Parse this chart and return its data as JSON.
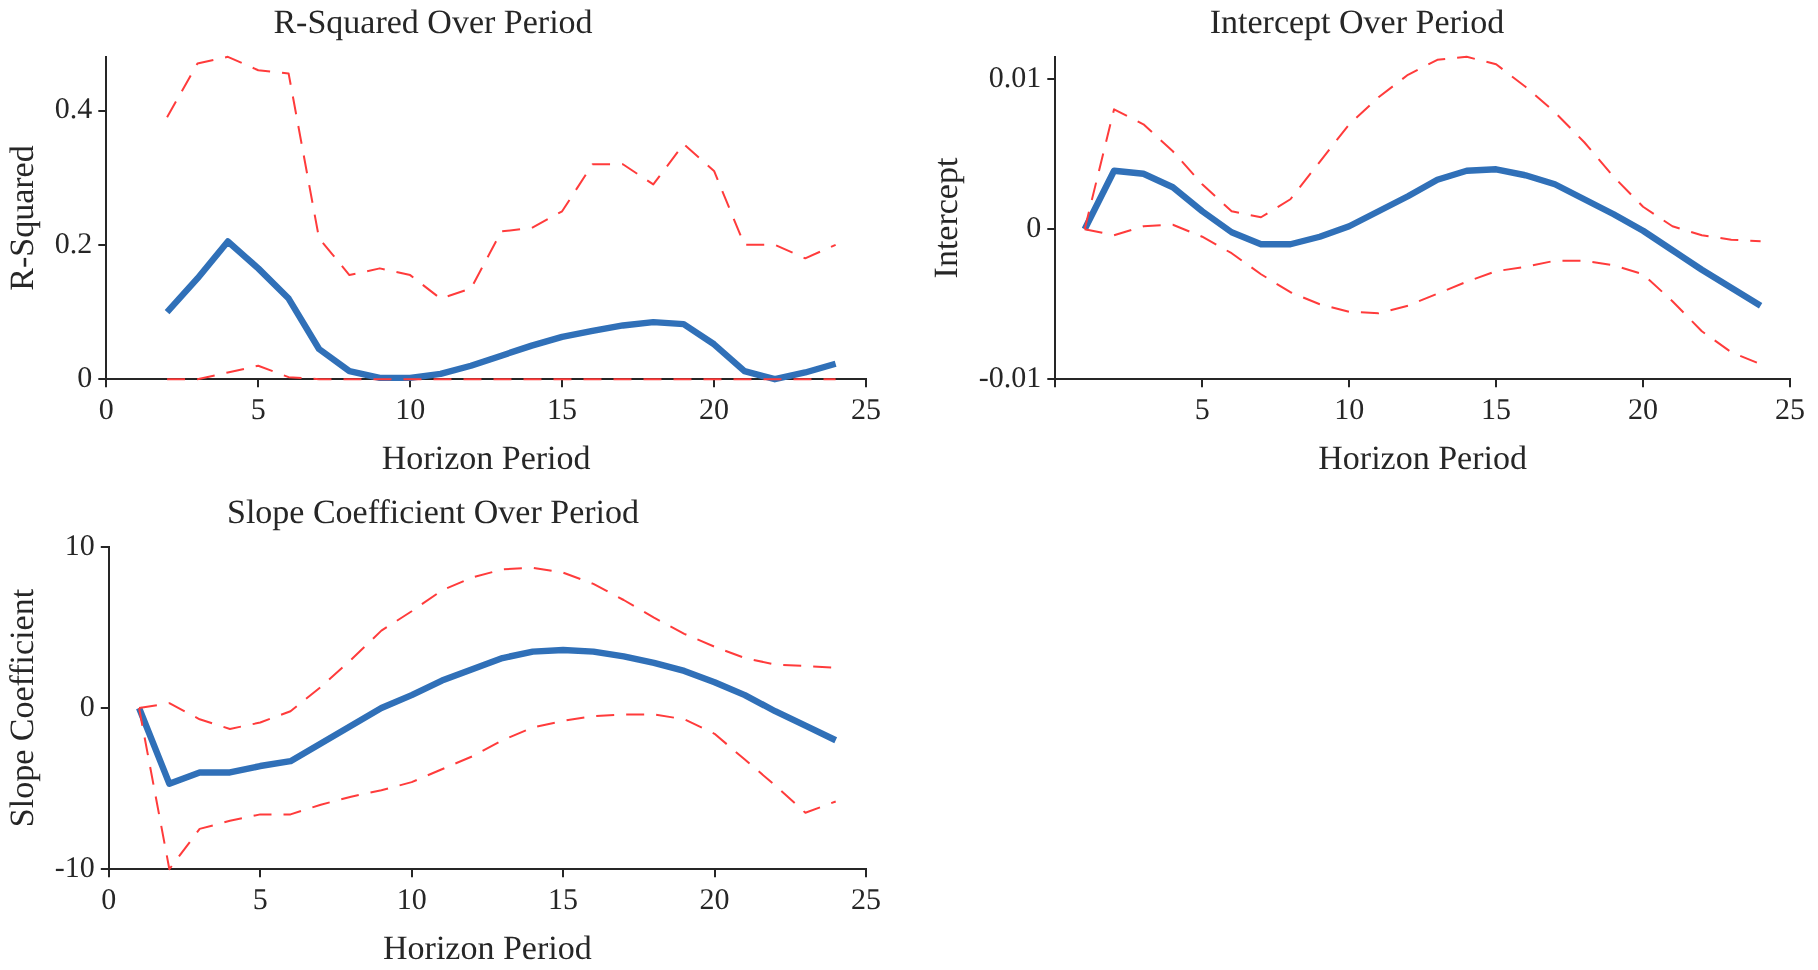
{
  "chart_data": [
    {
      "type": "line",
      "title": "R-Squared Over Period",
      "xlabel": "Horizon Period",
      "ylabel": "R-Squared",
      "x": [
        2,
        3,
        4,
        5,
        6,
        7,
        8,
        9,
        10,
        11,
        12,
        13,
        14,
        15,
        16,
        17,
        18,
        19,
        20,
        21,
        22,
        23,
        24
      ],
      "xlim": [
        0,
        25
      ],
      "xticks": [
        0,
        5,
        10,
        15,
        20,
        25
      ],
      "ylim": [
        0,
        0.48
      ],
      "yticks": [
        0,
        0.2,
        0.4
      ],
      "grid": false,
      "legend": false,
      "marker": "none",
      "series": [
        {
          "color": "#ff3b3b",
          "line_style": "dashed",
          "values": [
            0.39,
            0.47,
            0.48,
            0.46,
            0.455,
            0.21,
            0.155,
            0.165,
            0.155,
            0.12,
            0.135,
            0.22,
            0.225,
            0.25,
            0.32,
            0.32,
            0.29,
            0.35,
            0.31,
            0.2,
            0.2,
            0.18,
            0.2
          ]
        },
        {
          "color": "#ff3b3b",
          "line_style": "dashed",
          "values": [
            0,
            0,
            0.01,
            0.02,
            0.003,
            0,
            0,
            0,
            0,
            0,
            0,
            0,
            0,
            0,
            0,
            0,
            0,
            0,
            0,
            0,
            0,
            0,
            0
          ]
        },
        {
          "color": "#3070b8",
          "line_style": "solid",
          "values": [
            0.1,
            0.15,
            0.205,
            0.165,
            0.12,
            0.045,
            0.012,
            0.002,
            0.002,
            0.008,
            0.02,
            0.035,
            0.05,
            0.063,
            0.072,
            0.08,
            0.085,
            0.082,
            0.052,
            0.012,
            0,
            0.01,
            0.023
          ]
        }
      ]
    },
    {
      "type": "line",
      "title": "Intercept Over Period",
      "xlabel": "Horizon Period",
      "ylabel": "Intercept",
      "x": [
        1,
        2,
        3,
        4,
        5,
        6,
        7,
        8,
        9,
        10,
        11,
        12,
        13,
        14,
        15,
        16,
        17,
        18,
        19,
        20,
        21,
        22,
        23,
        24
      ],
      "xlim": [
        0,
        25
      ],
      "xticks": [
        {
          "value": 0,
          "label": null
        },
        5,
        10,
        15,
        20,
        25
      ],
      "ylim": [
        -0.01,
        0.0115
      ],
      "yticks": [
        -0.01,
        0,
        0.01
      ],
      "grid": false,
      "legend": false,
      "marker": "none",
      "series": [
        {
          "color": "#ff3b3b",
          "line_style": "dashed",
          "values": [
            0,
            0.008,
            0.007,
            0.0052,
            0.003,
            0.0012,
            0.0008,
            0.002,
            0.0045,
            0.007,
            0.0088,
            0.0103,
            0.0113,
            0.0115,
            0.011,
            0.0095,
            0.0078,
            0.0058,
            0.0035,
            0.0015,
            0.0002,
            -0.0004,
            -0.0007,
            -0.0008
          ]
        },
        {
          "color": "#ff3b3b",
          "line_style": "dashed",
          "values": [
            0,
            -0.0004,
            0.0002,
            0.0003,
            -0.0005,
            -0.0016,
            -0.003,
            -0.0042,
            -0.005,
            -0.0055,
            -0.0056,
            -0.0051,
            -0.0043,
            -0.0035,
            -0.0028,
            -0.0025,
            -0.0021,
            -0.0021,
            -0.0024,
            -0.003,
            -0.0048,
            -0.0068,
            -0.0082,
            -0.009
          ]
        },
        {
          "color": "#3070b8",
          "line_style": "solid",
          "values": [
            0,
            0.0039,
            0.0037,
            0.0028,
            0.0012,
            -0.0002,
            -0.001,
            -0.001,
            -0.0005,
            0.0002,
            0.0012,
            0.0022,
            0.0033,
            0.0039,
            0.004,
            0.0036,
            0.003,
            0.002,
            0.001,
            -0.0001,
            -0.0014,
            -0.0027,
            -0.0039,
            -0.0051
          ]
        }
      ]
    },
    {
      "type": "line",
      "title": "Slope Coefficient Over Period",
      "xlabel": "Horizon Period",
      "ylabel": "Slope Coefficient",
      "x": [
        1,
        2,
        3,
        4,
        5,
        6,
        7,
        8,
        9,
        10,
        11,
        12,
        13,
        14,
        15,
        16,
        17,
        18,
        19,
        20,
        21,
        22,
        23,
        24
      ],
      "xlim": [
        0,
        25
      ],
      "xticks": [
        0,
        5,
        10,
        15,
        20,
        25
      ],
      "ylim": [
        -10,
        10
      ],
      "yticks": [
        -10,
        0,
        10
      ],
      "grid": false,
      "legend": false,
      "marker": "none",
      "series": [
        {
          "color": "#ff3b3b",
          "line_style": "dashed",
          "values": [
            0,
            0.3,
            -0.7,
            -1.3,
            -0.9,
            -0.2,
            1.3,
            3,
            4.8,
            6,
            7.3,
            8.1,
            8.6,
            8.7,
            8.4,
            7.7,
            6.7,
            5.6,
            4.6,
            3.8,
            3.1,
            2.7,
            2.6,
            2.5
          ]
        },
        {
          "color": "#ff3b3b",
          "line_style": "dashed",
          "values": [
            0,
            -10,
            -7.5,
            -7,
            -6.6,
            -6.6,
            -6,
            -5.5,
            -5.1,
            -4.6,
            -3.8,
            -3,
            -2,
            -1.2,
            -0.8,
            -0.5,
            -0.4,
            -0.4,
            -0.7,
            -1.6,
            -3.2,
            -4.8,
            -6.5,
            -5.8
          ]
        },
        {
          "color": "#3070b8",
          "line_style": "solid",
          "values": [
            0,
            -4.7,
            -4,
            -4,
            -3.6,
            -3.3,
            -2.2,
            -1.1,
            0,
            0.8,
            1.7,
            2.4,
            3.1,
            3.5,
            3.6,
            3.5,
            3.2,
            2.8,
            2.3,
            1.6,
            0.8,
            -0.2,
            -1.1,
            -2
          ]
        }
      ]
    }
  ]
}
